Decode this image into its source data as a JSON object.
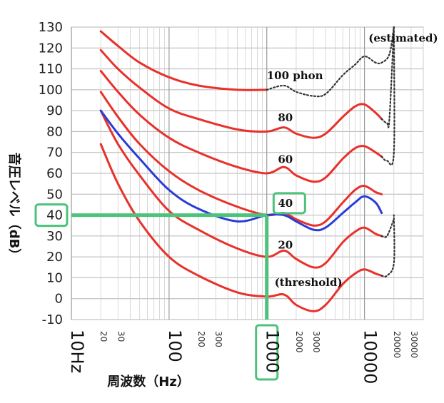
{
  "chart_data": {
    "type": "line",
    "xlabel": "周波数（Hz）",
    "ylabel": "音圧レベル（dB）",
    "x_scale": "log",
    "xlim": [
      10,
      40000
    ],
    "ylim": [
      -10,
      130
    ],
    "grid": true,
    "y_ticks": [
      -10,
      0,
      10,
      20,
      30,
      40,
      50,
      60,
      70,
      80,
      90,
      100,
      110,
      120,
      130
    ],
    "x_ticks_major": [
      {
        "value": 10,
        "label": "10Hz"
      },
      {
        "value": 100,
        "label": "100"
      },
      {
        "value": 1000,
        "label": "1000"
      },
      {
        "value": 10000,
        "label": "10000"
      }
    ],
    "x_ticks_minor": [
      {
        "value": 20,
        "label": "20"
      },
      {
        "value": 30,
        "label": "30"
      },
      {
        "value": 200,
        "label": "200"
      },
      {
        "value": 300,
        "label": "300"
      },
      {
        "value": 2000,
        "label": "2000"
      },
      {
        "value": 3000,
        "label": "3000"
      },
      {
        "value": 20000,
        "label": "20000"
      },
      {
        "value": 30000,
        "label": "30000"
      }
    ],
    "series": [
      {
        "label": "(threshold)",
        "color": "#e8312a",
        "style": "solid",
        "points": [
          [
            20,
            74
          ],
          [
            30,
            55
          ],
          [
            50,
            37
          ],
          [
            100,
            20
          ],
          [
            200,
            11
          ],
          [
            500,
            3
          ],
          [
            1000,
            1
          ],
          [
            1500,
            2
          ],
          [
            2000,
            -3
          ],
          [
            3000,
            -6
          ],
          [
            4000,
            -3
          ],
          [
            6000,
            7
          ],
          [
            8000,
            12
          ],
          [
            10000,
            14
          ],
          [
            13000,
            12
          ],
          [
            15000,
            11
          ]
        ]
      },
      {
        "label": "20",
        "color": "#e8312a",
        "style": "solid",
        "points": [
          [
            20,
            90
          ],
          [
            30,
            74
          ],
          [
            50,
            59
          ],
          [
            100,
            42
          ],
          [
            200,
            33
          ],
          [
            500,
            24
          ],
          [
            1000,
            20
          ],
          [
            1500,
            23
          ],
          [
            2000,
            19
          ],
          [
            3000,
            15
          ],
          [
            4000,
            17
          ],
          [
            6000,
            27
          ],
          [
            8000,
            32
          ],
          [
            10000,
            34
          ],
          [
            13000,
            31
          ],
          [
            15000,
            30
          ]
        ]
      },
      {
        "label": "40",
        "color": "#e8312a",
        "style": "solid",
        "points": [
          [
            20,
            99
          ],
          [
            30,
            87
          ],
          [
            50,
            74
          ],
          [
            100,
            61
          ],
          [
            200,
            52
          ],
          [
            500,
            44
          ],
          [
            1000,
            40
          ],
          [
            1500,
            41
          ],
          [
            2000,
            38
          ],
          [
            3000,
            35
          ],
          [
            4000,
            37
          ],
          [
            6000,
            46
          ],
          [
            8000,
            52
          ],
          [
            10000,
            54
          ],
          [
            13000,
            51
          ],
          [
            15000,
            50
          ]
        ]
      },
      {
        "label": "60",
        "color": "#e8312a",
        "style": "solid",
        "points": [
          [
            20,
            109
          ],
          [
            30,
            99
          ],
          [
            50,
            88
          ],
          [
            100,
            77
          ],
          [
            200,
            70
          ],
          [
            500,
            63
          ],
          [
            1000,
            60
          ],
          [
            1500,
            63
          ],
          [
            2000,
            59
          ],
          [
            3000,
            56
          ],
          [
            4000,
            58
          ],
          [
            6000,
            67
          ],
          [
            8000,
            72
          ],
          [
            10000,
            73
          ],
          [
            13000,
            70
          ],
          [
            15000,
            68
          ]
        ]
      },
      {
        "label": "80",
        "color": "#e8312a",
        "style": "solid",
        "points": [
          [
            20,
            119
          ],
          [
            30,
            110
          ],
          [
            50,
            101
          ],
          [
            100,
            91
          ],
          [
            200,
            86
          ],
          [
            500,
            81
          ],
          [
            1000,
            80
          ],
          [
            1500,
            82
          ],
          [
            2000,
            79
          ],
          [
            3000,
            77
          ],
          [
            4000,
            79
          ],
          [
            6000,
            87
          ],
          [
            8000,
            92
          ],
          [
            10000,
            93
          ],
          [
            13000,
            89
          ],
          [
            15000,
            86
          ]
        ]
      },
      {
        "label": "100 phon",
        "color": "#e8312a",
        "style": "solid",
        "points": [
          [
            20,
            128
          ],
          [
            30,
            121
          ],
          [
            50,
            113
          ],
          [
            100,
            106
          ],
          [
            200,
            102
          ],
          [
            500,
            100
          ],
          [
            1000,
            100
          ]
        ]
      },
      {
        "label": "",
        "color": "#333333",
        "style": "dotted",
        "points": [
          [
            1000,
            100
          ],
          [
            1500,
            102
          ],
          [
            2000,
            99
          ],
          [
            3000,
            97
          ],
          [
            4000,
            98
          ],
          [
            6000,
            107
          ],
          [
            8000,
            112
          ],
          [
            10000,
            116
          ],
          [
            13000,
            113
          ],
          [
            15000,
            113
          ],
          [
            18000,
            117
          ],
          [
            20000,
            130
          ]
        ]
      },
      {
        "label": "",
        "color": "#333333",
        "style": "dotted",
        "points": [
          [
            15000,
            86
          ],
          [
            17000,
            84
          ],
          [
            18000,
            86
          ],
          [
            20000,
            130
          ]
        ]
      },
      {
        "label": "",
        "color": "#333333",
        "style": "dotted",
        "points": [
          [
            15000,
            68
          ],
          [
            17000,
            66
          ],
          [
            20000,
            70
          ],
          [
            20000,
            130
          ]
        ]
      },
      {
        "label": "",
        "color": "#333333",
        "style": "dotted",
        "points": [
          [
            15000,
            30
          ],
          [
            17000,
            30
          ],
          [
            20000,
            38
          ]
        ]
      },
      {
        "label": "",
        "color": "#333333",
        "style": "dotted",
        "points": [
          [
            15000,
            11
          ],
          [
            17000,
            11
          ],
          [
            20000,
            17
          ],
          [
            20000,
            40
          ]
        ]
      },
      {
        "label": "",
        "color": "#2b3cd6",
        "style": "solid",
        "points": [
          [
            20,
            90
          ],
          [
            30,
            79
          ],
          [
            50,
            67
          ],
          [
            100,
            52
          ],
          [
            200,
            43
          ],
          [
            500,
            37
          ],
          [
            1000,
            40
          ],
          [
            1500,
            40
          ],
          [
            2000,
            37
          ],
          [
            3000,
            33
          ],
          [
            4000,
            34
          ],
          [
            6000,
            41
          ],
          [
            8000,
            46
          ],
          [
            10000,
            49
          ],
          [
            13000,
            46
          ],
          [
            15000,
            41
          ]
        ]
      }
    ],
    "annotations": [
      {
        "text": "(estimated)",
        "x": 11000,
        "y": 123
      },
      {
        "text": "100 phon",
        "x": 1000,
        "y": 105
      },
      {
        "text": "80",
        "x": 1300,
        "y": 85
      },
      {
        "text": "60",
        "x": 1300,
        "y": 65
      },
      {
        "text": "40",
        "x": 1300,
        "y": 44
      },
      {
        "text": "20",
        "x": 1300,
        "y": 24
      },
      {
        "text": "(threshold)",
        "x": 1200,
        "y": 6
      }
    ],
    "highlight": {
      "x": 1000,
      "y": 40,
      "color": "#4cc27a",
      "boxed_labels": [
        "40",
        "1000"
      ]
    }
  }
}
